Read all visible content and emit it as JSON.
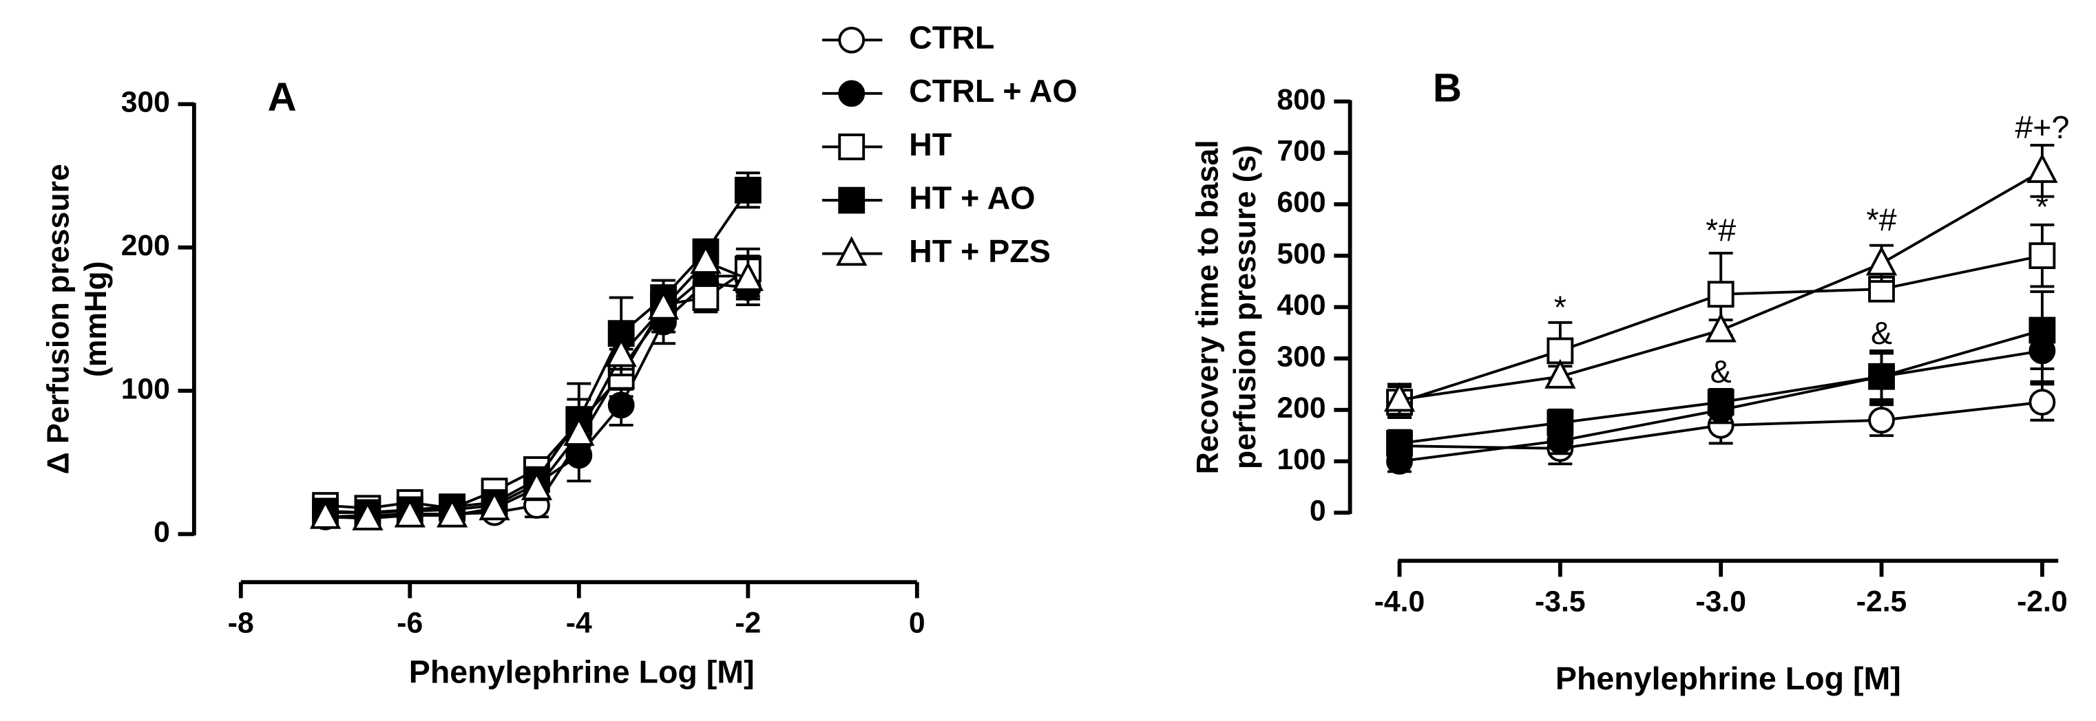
{
  "chart_data": [
    {
      "type": "line",
      "panel": "A",
      "ylabel": [
        "Δ Perfusion pressure",
        "(mmHg)"
      ],
      "xlabel": "Phenylephrine Log [M]",
      "xlim": [
        -8,
        0
      ],
      "xticks": [
        -8,
        -6,
        -4,
        -2,
        0
      ],
      "ylim": [
        0,
        300
      ],
      "yticks": [
        0,
        100,
        200,
        300
      ],
      "x": [
        -7,
        -6.5,
        -6,
        -5.5,
        -5,
        -4.5,
        -4,
        -3.5,
        -3,
        -2.5,
        -2
      ],
      "series": [
        {
          "name": "CTRL",
          "marker": "circle",
          "filled": false,
          "color": "#000",
          "values": [
            12,
            13,
            14,
            14,
            15,
            20,
            65,
            115,
            155,
            180,
            180
          ],
          "errors": [
            4,
            4,
            4,
            4,
            4,
            8,
            12,
            14,
            14,
            12,
            14
          ]
        },
        {
          "name": "CTRL + AO",
          "marker": "circle",
          "filled": true,
          "color": "#000",
          "values": [
            15,
            15,
            16,
            17,
            20,
            35,
            55,
            90,
            148,
            175,
            172
          ],
          "errors": [
            4,
            4,
            4,
            4,
            5,
            8,
            18,
            14,
            15,
            12,
            12
          ]
        },
        {
          "name": "HT",
          "marker": "square",
          "filled": false,
          "color": "#000",
          "values": [
            20,
            18,
            22,
            18,
            30,
            45,
            78,
            110,
            160,
            165,
            185
          ],
          "errors": [
            4,
            4,
            4,
            4,
            5,
            8,
            16,
            14,
            12,
            10,
            14
          ]
        },
        {
          "name": "HT + AO",
          "marker": "square",
          "filled": true,
          "color": "#000",
          "values": [
            16,
            15,
            17,
            19,
            22,
            38,
            80,
            140,
            165,
            197,
            240
          ],
          "errors": [
            4,
            4,
            4,
            4,
            5,
            8,
            25,
            25,
            12,
            8,
            12
          ]
        },
        {
          "name": "HT + PZS",
          "marker": "triangle",
          "filled": false,
          "color": "#000",
          "values": [
            12,
            11,
            13,
            13,
            18,
            32,
            70,
            125,
            158,
            190,
            178
          ],
          "errors": [
            4,
            4,
            4,
            4,
            5,
            8,
            14,
            14,
            12,
            10,
            14
          ]
        }
      ]
    },
    {
      "type": "line",
      "panel": "B",
      "ylabel": [
        "Recovery time to basal",
        "perfusion pressure (s)"
      ],
      "xlabel": "Phenylephrine Log [M]",
      "xlim": [
        -4.1,
        -1.95
      ],
      "xticks": [
        {
          "value": -4,
          "label": "-4.0"
        },
        {
          "value": -3.5,
          "label": "-3.5"
        },
        {
          "value": -3,
          "label": "-3.0"
        },
        {
          "value": -2.5,
          "label": "-2.5"
        },
        {
          "value": -2,
          "label": "-2.0"
        }
      ],
      "ylim": [
        0,
        800
      ],
      "yticks": [
        0,
        100,
        200,
        300,
        400,
        500,
        600,
        700,
        800
      ],
      "x": [
        -4,
        -3.5,
        -3,
        -2.5,
        -2
      ],
      "series": [
        {
          "marker": "circle",
          "filled": false,
          "color": "#000",
          "values": [
            130,
            125,
            170,
            180,
            215
          ],
          "errors": [
            20,
            30,
            35,
            30,
            35
          ]
        },
        {
          "marker": "circle",
          "filled": true,
          "color": "#000",
          "values": [
            100,
            140,
            200,
            265,
            315
          ],
          "errors": [
            20,
            25,
            25,
            45,
            60
          ]
        },
        {
          "marker": "square",
          "filled": false,
          "color": "#000",
          "values": [
            215,
            315,
            425,
            435,
            500
          ],
          "errors": [
            30,
            55,
            80,
            20,
            60
          ]
        },
        {
          "marker": "square",
          "filled": true,
          "color": "#000",
          "values": [
            135,
            175,
            215,
            265,
            355
          ],
          "errors": [
            25,
            25,
            25,
            50,
            75
          ]
        },
        {
          "marker": "triangle",
          "filled": false,
          "color": "#000",
          "values": [
            220,
            265,
            355,
            485,
            665
          ],
          "errors": [
            30,
            20,
            20,
            35,
            50
          ]
        }
      ],
      "annotations": [
        {
          "text": "*",
          "x": -3.5,
          "y": 395
        },
        {
          "text": "*#",
          "x": -3,
          "y": 545
        },
        {
          "text": "*#",
          "x": -2.5,
          "y": 565
        },
        {
          "text": "&",
          "x": -3,
          "y": 270
        },
        {
          "text": "&",
          "x": -2.5,
          "y": 345
        },
        {
          "text": "#+?",
          "x": -2,
          "y": 745
        },
        {
          "text": "*",
          "x": -2,
          "y": 590
        }
      ]
    }
  ]
}
